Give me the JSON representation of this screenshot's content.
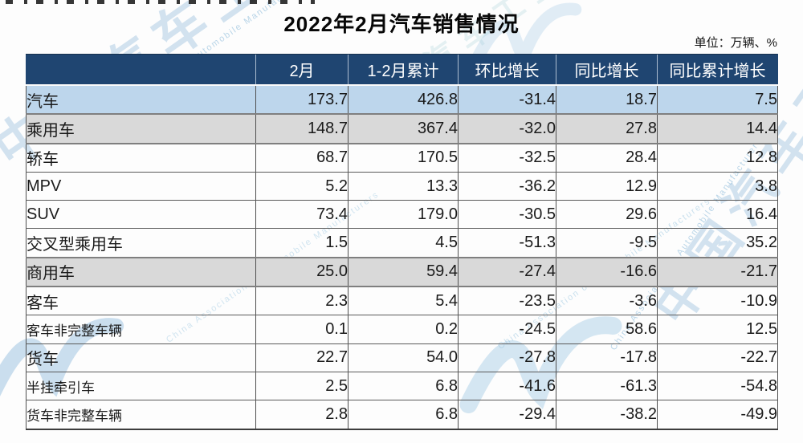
{
  "page": {
    "title": "2022年2月汽车销售情况",
    "unit_note": "单位：万辆、%"
  },
  "watermark": {
    "org_cn": "中国汽车工业协会",
    "org_en": "China Association of Automobile Manufacturers"
  },
  "colors": {
    "header_bg": "#1F4571",
    "row_total_blue": "#BDD6EC",
    "row_subtotal_gray": "#D9D9D9",
    "watermark_blue": "#7AACD4",
    "border_dark": "#4F4F4F"
  },
  "table": {
    "columns": [
      "",
      "2月",
      "1-2月累计",
      "环比增长",
      "同比增长",
      "同比累计增长"
    ],
    "rows": [
      {
        "label": "汽车",
        "indent": 0,
        "highlight": "blue",
        "values": [
          "173.7",
          "426.8",
          "-31.4",
          "18.7",
          "7.5"
        ]
      },
      {
        "label": "乘用车",
        "indent": 1,
        "highlight": "gray",
        "values": [
          "148.7",
          "367.4",
          "-32.0",
          "27.8",
          "14.4"
        ]
      },
      {
        "label": "轿车",
        "indent": 2,
        "highlight": "none",
        "values": [
          "68.7",
          "170.5",
          "-32.5",
          "28.4",
          "12.8"
        ]
      },
      {
        "label": "MPV",
        "indent": 2,
        "highlight": "none",
        "values": [
          "5.2",
          "13.3",
          "-36.2",
          "12.9",
          "3.8"
        ]
      },
      {
        "label": "SUV",
        "indent": 2,
        "highlight": "none",
        "values": [
          "73.4",
          "179.0",
          "-30.5",
          "29.6",
          "16.4"
        ]
      },
      {
        "label": "交叉型乘用车",
        "indent": 2,
        "highlight": "none",
        "values": [
          "1.5",
          "4.5",
          "-51.3",
          "-9.5",
          "35.2"
        ]
      },
      {
        "label": "商用车",
        "indent": 1,
        "highlight": "gray",
        "values": [
          "25.0",
          "59.4",
          "-27.4",
          "-16.6",
          "-21.7"
        ]
      },
      {
        "label": "客车",
        "indent": 2,
        "highlight": "none",
        "values": [
          "2.3",
          "5.4",
          "-23.5",
          "-3.6",
          "-10.9"
        ]
      },
      {
        "label": "客车非完整车辆",
        "indent": 3,
        "highlight": "none",
        "values": [
          "0.1",
          "0.2",
          "-24.5",
          "58.6",
          "12.5"
        ]
      },
      {
        "label": "货车",
        "indent": 2,
        "highlight": "none",
        "values": [
          "22.7",
          "54.0",
          "-27.8",
          "-17.8",
          "-22.7"
        ]
      },
      {
        "label": "半挂牵引车",
        "indent": 3,
        "highlight": "none",
        "values": [
          "2.5",
          "6.8",
          "-41.6",
          "-61.3",
          "-54.8"
        ]
      },
      {
        "label": "货车非完整车辆",
        "indent": 3,
        "highlight": "none",
        "values": [
          "2.8",
          "6.8",
          "-29.4",
          "-38.2",
          "-49.9"
        ]
      }
    ]
  },
  "chart_data": {
    "type": "table",
    "title": "2022年2月汽车销售情况",
    "unit": "万辆、%",
    "columns": [
      "2月",
      "1-2月累计",
      "环比增长",
      "同比增长",
      "同比累计增长"
    ],
    "rows": [
      {
        "category": "汽车",
        "feb": 173.7,
        "jan_feb_cum": 426.8,
        "mom_growth": -31.4,
        "yoy_growth": 18.7,
        "yoy_cum_growth": 7.5
      },
      {
        "category": "乘用车",
        "feb": 148.7,
        "jan_feb_cum": 367.4,
        "mom_growth": -32.0,
        "yoy_growth": 27.8,
        "yoy_cum_growth": 14.4
      },
      {
        "category": "轿车",
        "feb": 68.7,
        "jan_feb_cum": 170.5,
        "mom_growth": -32.5,
        "yoy_growth": 28.4,
        "yoy_cum_growth": 12.8
      },
      {
        "category": "MPV",
        "feb": 5.2,
        "jan_feb_cum": 13.3,
        "mom_growth": -36.2,
        "yoy_growth": 12.9,
        "yoy_cum_growth": 3.8
      },
      {
        "category": "SUV",
        "feb": 73.4,
        "jan_feb_cum": 179.0,
        "mom_growth": -30.5,
        "yoy_growth": 29.6,
        "yoy_cum_growth": 16.4
      },
      {
        "category": "交叉型乘用车",
        "feb": 1.5,
        "jan_feb_cum": 4.5,
        "mom_growth": -51.3,
        "yoy_growth": -9.5,
        "yoy_cum_growth": 35.2
      },
      {
        "category": "商用车",
        "feb": 25.0,
        "jan_feb_cum": 59.4,
        "mom_growth": -27.4,
        "yoy_growth": -16.6,
        "yoy_cum_growth": -21.7
      },
      {
        "category": "客车",
        "feb": 2.3,
        "jan_feb_cum": 5.4,
        "mom_growth": -23.5,
        "yoy_growth": -3.6,
        "yoy_cum_growth": -10.9
      },
      {
        "category": "客车非完整车辆",
        "feb": 0.1,
        "jan_feb_cum": 0.2,
        "mom_growth": -24.5,
        "yoy_growth": 58.6,
        "yoy_cum_growth": 12.5
      },
      {
        "category": "货车",
        "feb": 22.7,
        "jan_feb_cum": 54.0,
        "mom_growth": -27.8,
        "yoy_growth": -17.8,
        "yoy_cum_growth": -22.7
      },
      {
        "category": "半挂牵引车",
        "feb": 2.5,
        "jan_feb_cum": 6.8,
        "mom_growth": -41.6,
        "yoy_growth": -61.3,
        "yoy_cum_growth": -54.8
      },
      {
        "category": "货车非完整车辆",
        "feb": 2.8,
        "jan_feb_cum": 6.8,
        "mom_growth": -29.4,
        "yoy_growth": -38.2,
        "yoy_cum_growth": -49.9
      }
    ]
  }
}
